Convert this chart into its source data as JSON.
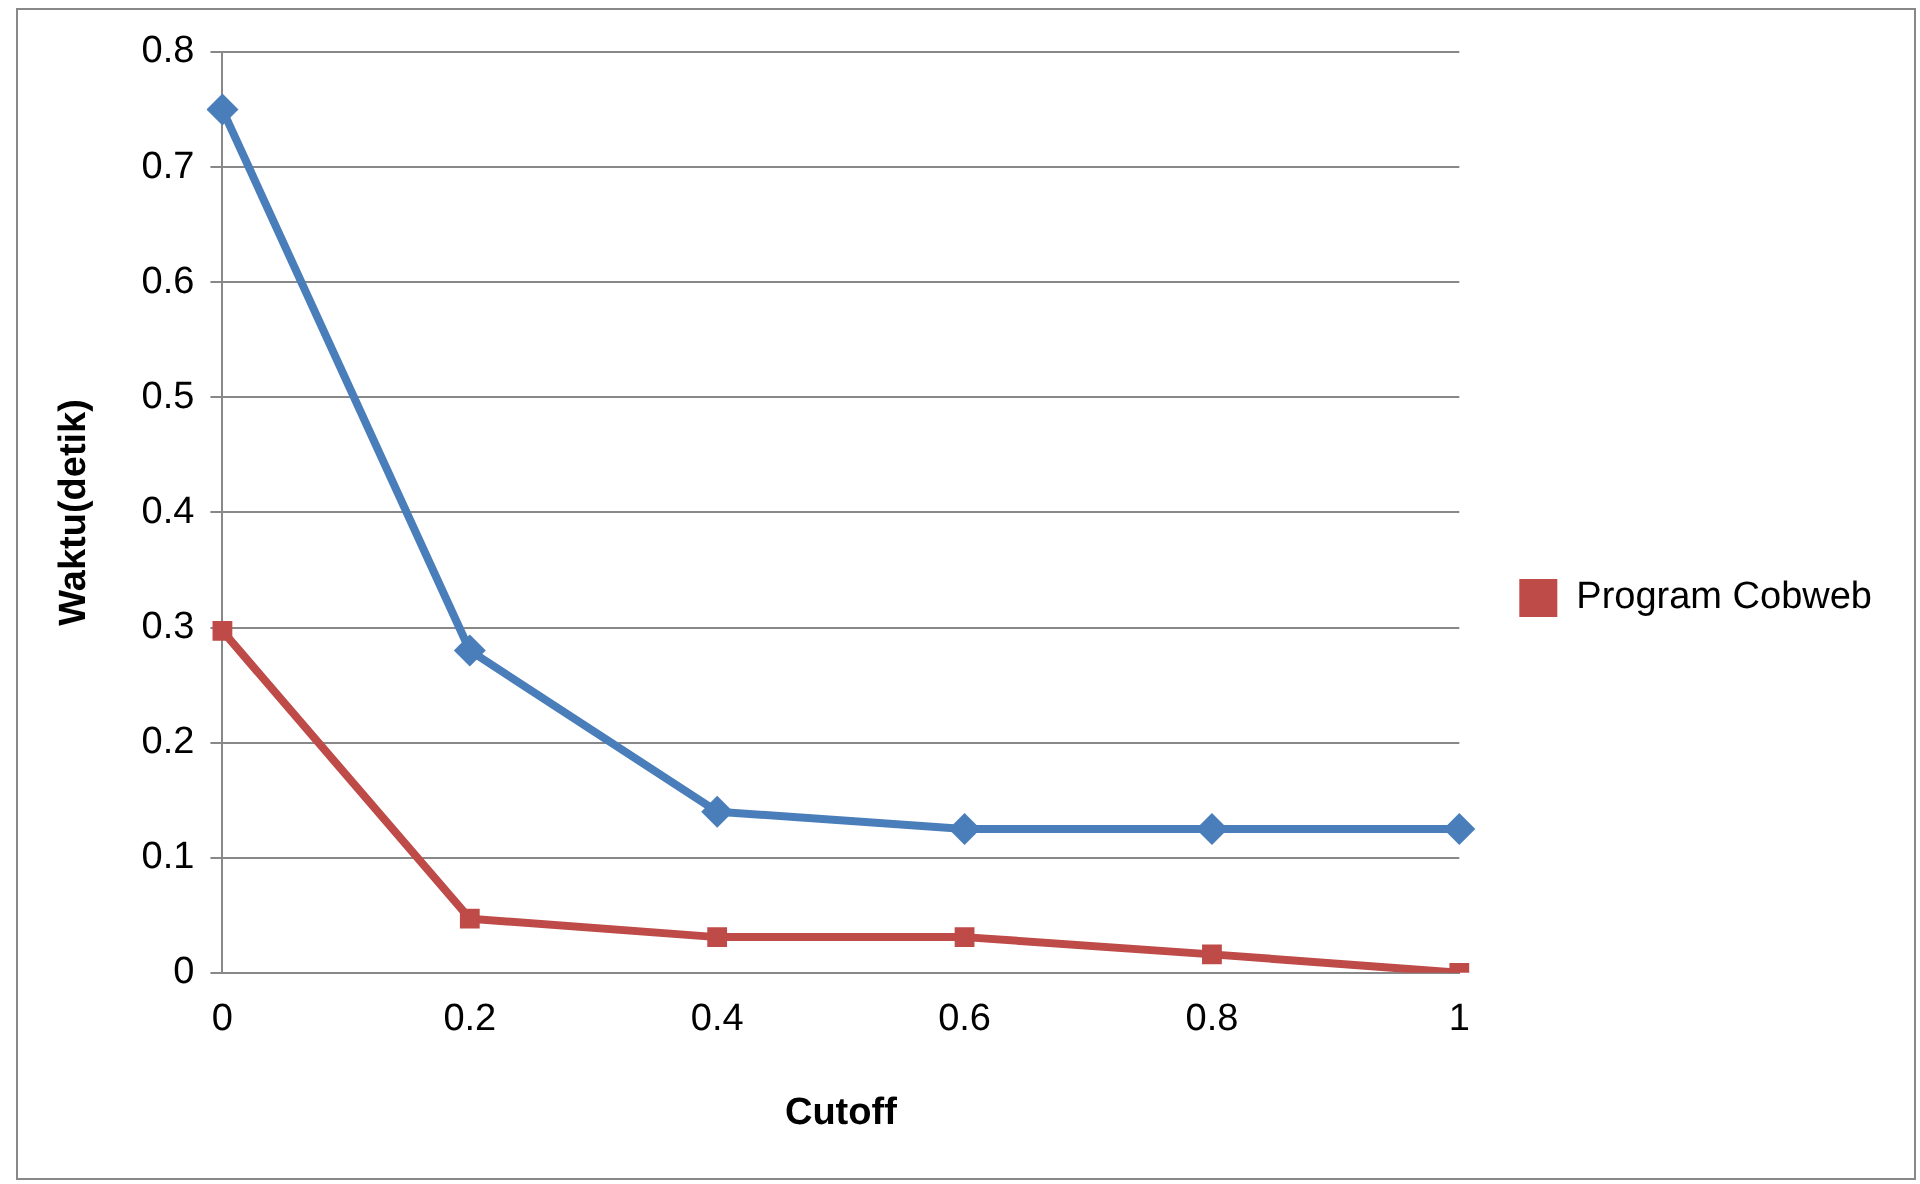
{
  "chart_data": {
    "type": "line",
    "xlabel": "Cutoff",
    "ylabel": "Waktu(detik)",
    "categories": [
      "0",
      "0.2",
      "0.4",
      "0.6",
      "0.8",
      "1"
    ],
    "series": [
      {
        "color": "#4a7ebb",
        "marker": "diamond",
        "values": [
          0.75,
          0.28,
          0.14,
          0.125,
          0.125,
          0.125
        ]
      },
      {
        "name": "Program Cobweb",
        "color": "#be4b48",
        "marker": "square",
        "values": [
          0.297,
          0.047,
          0.031,
          0.031,
          0.016,
          0
        ]
      }
    ],
    "ylim": [
      0,
      0.8
    ],
    "yticks": [
      0,
      0.1,
      0.2,
      0.3,
      0.4,
      0.5,
      0.6,
      0.7,
      0.8
    ],
    "grid": "y",
    "legend": "right",
    "line_style": "solid"
  }
}
